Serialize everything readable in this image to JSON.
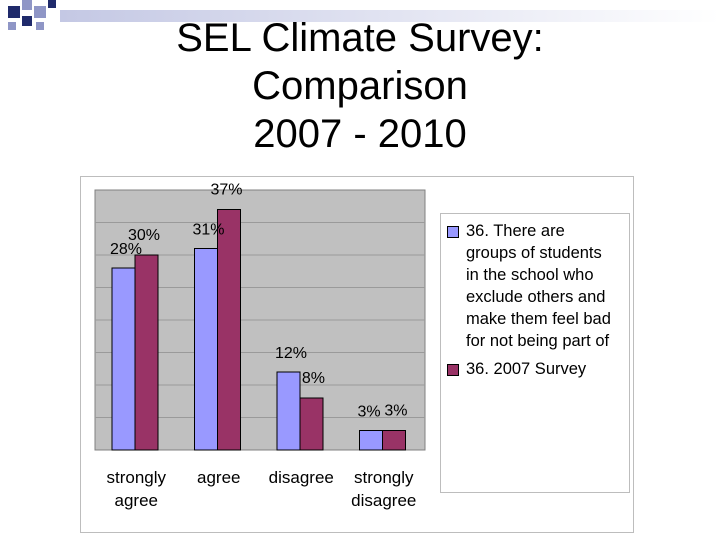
{
  "slide": {
    "title_lines": [
      "SEL Climate Survey:",
      "Comparison",
      "2007 - 2010"
    ]
  },
  "colors": {
    "series_2010": "#9999ff",
    "series_2007": "#993366",
    "plot_bg": "#c0c0c0",
    "deco_1": "#1f2a6b",
    "deco_2": "#8f96c6"
  },
  "chart_data": {
    "type": "bar",
    "categories": [
      "strongly agree",
      "agree",
      "disagree",
      "strongly disagree"
    ],
    "category_label_lines": [
      [
        "strongly",
        "agree"
      ],
      [
        "agree"
      ],
      [
        "disagree"
      ],
      [
        "strongly",
        "disagree"
      ]
    ],
    "series": [
      {
        "name": "36. There are groups of students in the school who exclude others and make them feel bad for not being part of",
        "values": [
          28,
          31,
          12,
          3
        ],
        "labels": [
          "28%",
          "31%",
          "12%",
          "3%"
        ]
      },
      {
        "name": "36. 2007 Survey",
        "values": [
          30,
          37,
          8,
          3
        ],
        "labels": [
          "30%",
          "37%",
          "8%",
          "3%"
        ]
      }
    ],
    "ylim": [
      0,
      40
    ],
    "grid": true,
    "legend": "right",
    "xlabel": "",
    "ylabel": ""
  },
  "legend": {
    "item1_lines": [
      "36. There are",
      "groups of students",
      "in the school who",
      "exclude others and",
      "make them feel bad",
      "for not being part of"
    ],
    "item2_lines": [
      "36. 2007 Survey"
    ]
  }
}
